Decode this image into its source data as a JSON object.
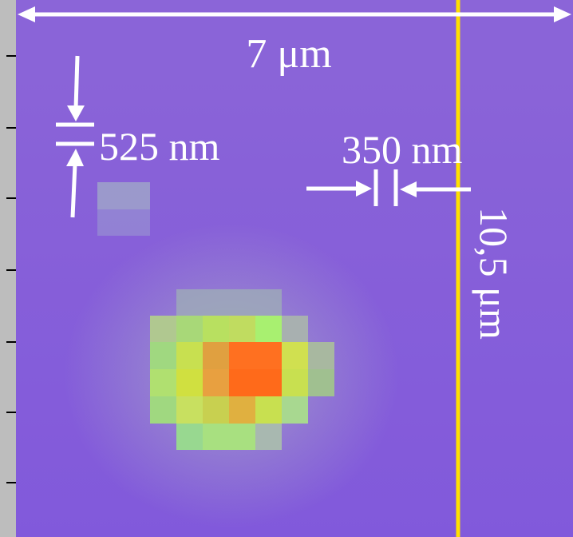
{
  "image": {
    "width_label": "7 μm",
    "height_label": "10,5 μm"
  },
  "pixel": {
    "height_label": "525 nm",
    "width_label": "350 nm"
  }
}
